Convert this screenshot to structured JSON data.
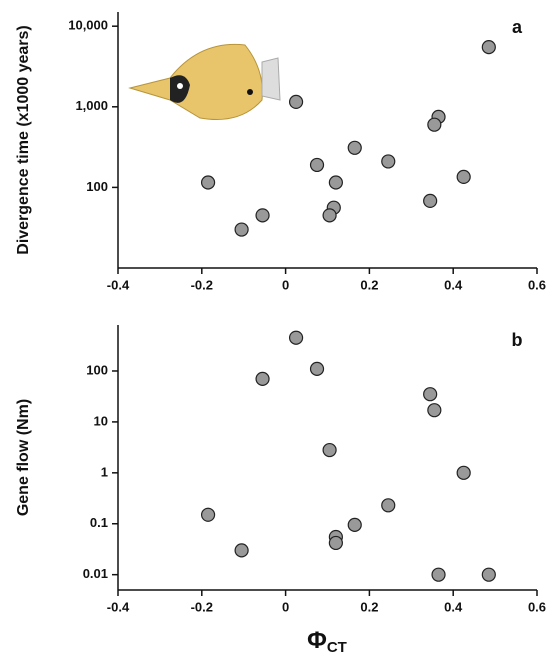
{
  "chart_data": [
    {
      "type": "scatter",
      "panel_label": "a",
      "ylabel": "Divergence time (x1000 years)",
      "log_y": true,
      "color": "#999999",
      "x": [
        0.485,
        0.025,
        -0.185,
        -0.105,
        -0.055,
        0.075,
        0.165,
        0.12,
        0.115,
        0.105,
        0.245,
        0.365,
        0.355,
        0.425,
        0.345
      ],
      "values": [
        5500,
        1150,
        115,
        30,
        45,
        190,
        310,
        115,
        56,
        45,
        210,
        750,
        600,
        135,
        68
      ],
      "xlim": [
        -0.4,
        0.6
      ],
      "xticks": [
        -0.4,
        -0.2,
        0,
        0.2,
        0.4,
        0.6
      ],
      "ylim": [
        10,
        15000
      ],
      "yticks": [
        100,
        {
          "value": 1000,
          "label": "1,000"
        },
        {
          "value": 10000,
          "label": "10,000"
        }
      ]
    },
    {
      "type": "scatter",
      "panel_label": "b",
      "ylabel": "Gene flow (Nm)",
      "log_y": true,
      "color": "#999999",
      "xlabel_main": "Φ",
      "xlabel_sub": "CT",
      "x": [
        0.025,
        0.075,
        -0.055,
        0.345,
        0.355,
        0.105,
        0.425,
        0.245,
        0.165,
        0.12,
        0.12,
        -0.185,
        -0.105,
        0.365,
        0.485
      ],
      "values": [
        450,
        110,
        70,
        35,
        17,
        2.8,
        1,
        0.23,
        0.095,
        0.055,
        0.042,
        0.15,
        0.03,
        0.01,
        0.01
      ],
      "xlim": [
        -0.4,
        0.6
      ],
      "xticks": [
        -0.4,
        -0.2,
        0,
        0.2,
        0.4,
        0.6
      ],
      "ylim": [
        0.005,
        800
      ],
      "yticks": [
        0.01,
        0.1,
        1,
        10,
        100
      ]
    }
  ]
}
